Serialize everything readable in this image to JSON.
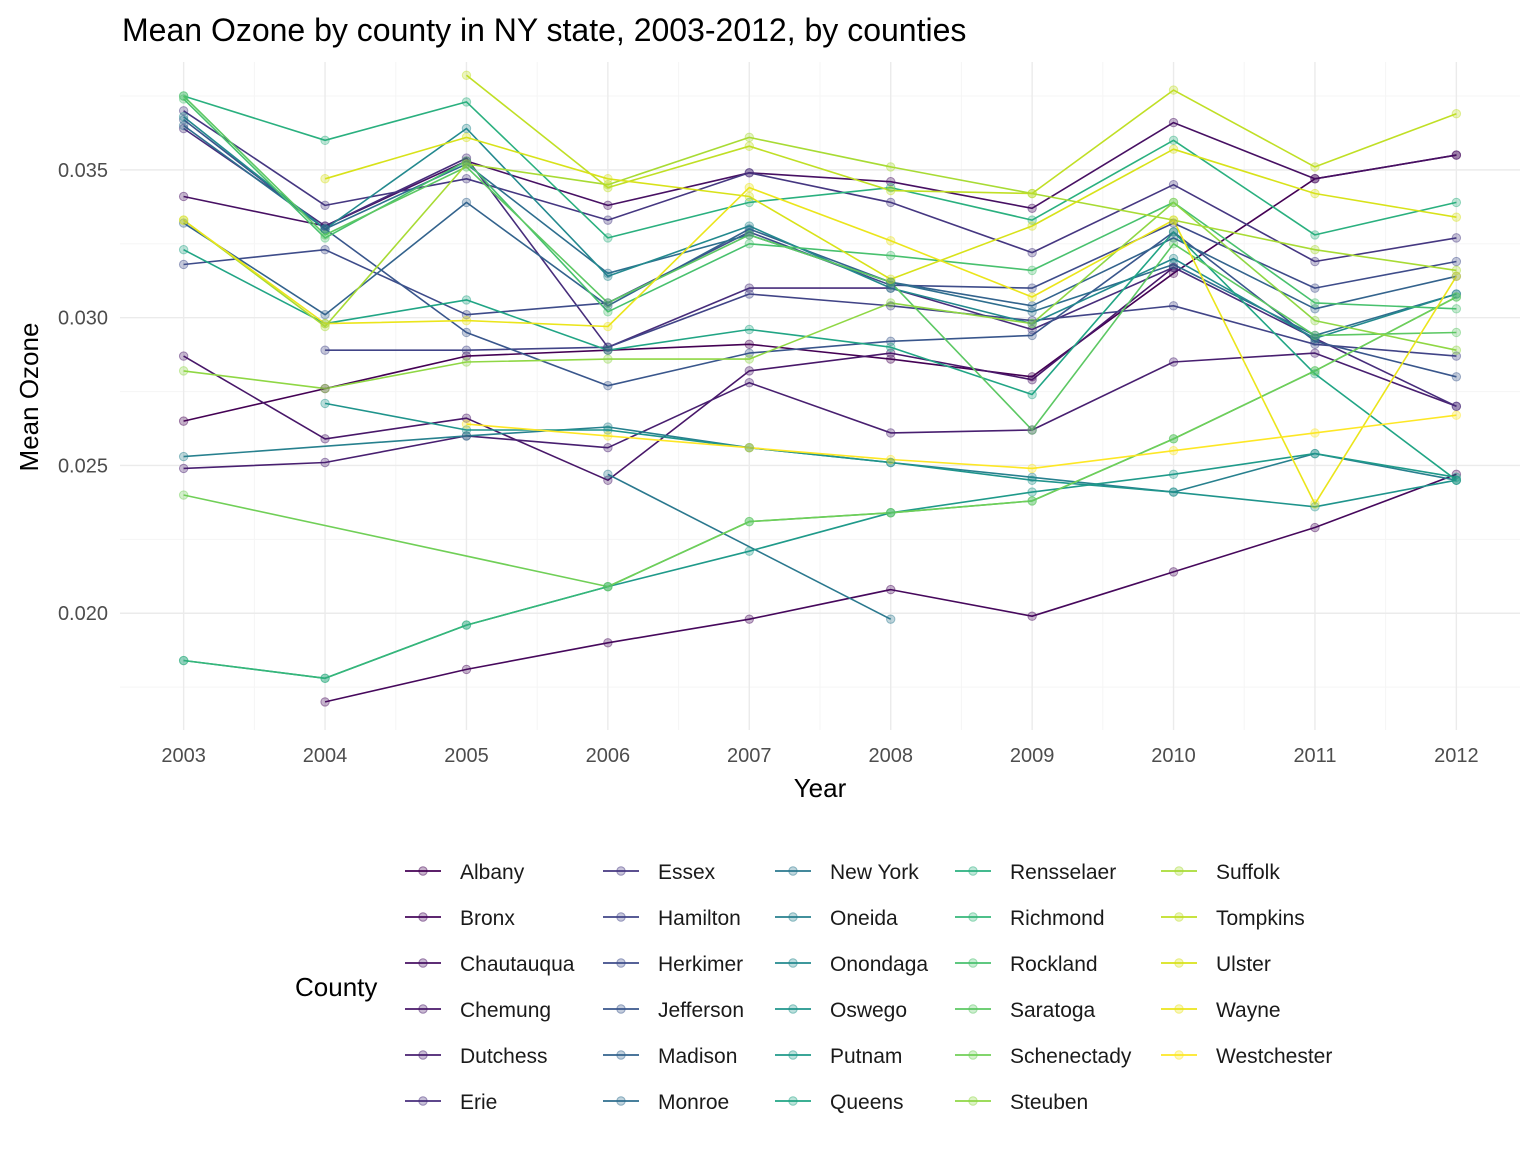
{
  "chart_data": {
    "type": "line",
    "title": "Mean Ozone by county in NY state, 2003-2012, by counties",
    "xlabel": "Year",
    "ylabel": "Mean Ozone",
    "xlim": [
      2002.55,
      2012.45
    ],
    "ylim": [
      0.01605,
      0.03865
    ],
    "x_ticks": [
      2003,
      2004,
      2005,
      2006,
      2007,
      2008,
      2009,
      2010,
      2011,
      2012
    ],
    "y_ticks": [
      0.02,
      0.025,
      0.03,
      0.035
    ],
    "y_tick_labels": [
      "0.020",
      "0.025",
      "0.030",
      "0.035"
    ],
    "grid": true,
    "legend_title": "County",
    "legend_position": "bottom",
    "series": [
      {
        "name": "Albany",
        "color": "#440154",
        "x": [
          2003,
          2004,
          2005,
          2006,
          2007,
          2008,
          2009,
          2010,
          2011,
          2012
        ],
        "y": [
          0.0265,
          0.0276,
          0.0287,
          0.0289,
          0.0291,
          0.0286,
          0.028,
          0.0315,
          0.0347,
          0.0355
        ]
      },
      {
        "name": "Bronx",
        "color": "#46085C",
        "x": [
          2004,
          2005,
          2006,
          2007,
          2008,
          2009,
          2010,
          2011,
          2012
        ],
        "y": [
          0.017,
          0.0181,
          0.019,
          0.0198,
          0.0208,
          0.0199,
          0.0214,
          0.0229,
          0.0247
        ]
      },
      {
        "name": "Chautauqua",
        "color": "#471063",
        "x": [
          2003,
          2004,
          2005,
          2006,
          2007,
          2008,
          2009,
          2010,
          2011,
          2012
        ],
        "y": [
          0.0341,
          0.0331,
          0.0353,
          0.0338,
          0.0349,
          0.0346,
          0.0337,
          0.0366,
          0.0347,
          0.0355
        ]
      },
      {
        "name": "Chemung",
        "color": "#481769",
        "x": [
          2003,
          2004,
          2005,
          2006,
          2007,
          2008,
          2009,
          2010
        ],
        "y": [
          0.0287,
          0.0259,
          0.0266,
          0.0245,
          0.0282,
          0.0288,
          0.0279,
          0.0317
        ]
      },
      {
        "name": "Dutchess",
        "color": "#481F70",
        "x": [
          2003,
          2004,
          2005,
          2006,
          2007,
          2008,
          2009,
          2010,
          2011,
          2012
        ],
        "y": [
          0.0249,
          0.0251,
          0.026,
          0.0256,
          0.0278,
          0.0261,
          0.0262,
          0.0285,
          0.0288,
          0.027
        ]
      },
      {
        "name": "Erie",
        "color": "#472D7B",
        "x": [
          2003,
          2004,
          2005,
          2006,
          2007,
          2008,
          2009,
          2010,
          2011,
          2012
        ],
        "y": [
          0.0364,
          0.0331,
          0.0354,
          0.029,
          0.031,
          0.031,
          0.0296,
          0.0317,
          0.0293,
          0.027
        ]
      },
      {
        "name": "Essex",
        "color": "#453781",
        "x": [
          2003,
          2004,
          2005,
          2006,
          2007,
          2008,
          2009,
          2010,
          2011,
          2012
        ],
        "y": [
          0.037,
          0.0338,
          0.0347,
          0.0333,
          0.0349,
          0.0339,
          0.0322,
          0.0345,
          0.0319,
          0.0327
        ]
      },
      {
        "name": "Hamilton",
        "color": "#414487",
        "x": [
          2004,
          2005,
          2006,
          2007,
          2008,
          2009,
          2010,
          2011,
          2012
        ],
        "y": [
          0.0289,
          0.0289,
          0.029,
          0.0308,
          0.0304,
          0.0299,
          0.0304,
          0.0291,
          0.0287
        ]
      },
      {
        "name": "Herkimer",
        "color": "#3E4C8A",
        "x": [
          2003,
          2004,
          2005,
          2006,
          2007,
          2008,
          2009,
          2010,
          2011,
          2012
        ],
        "y": [
          0.0318,
          0.0323,
          0.0301,
          0.0305,
          0.0329,
          0.0311,
          0.031,
          0.0332,
          0.031,
          0.0319
        ]
      },
      {
        "name": "Jefferson",
        "color": "#39568C",
        "x": [
          2003,
          2004,
          2005,
          2006,
          2007,
          2008,
          2009,
          2010,
          2011,
          2012
        ],
        "y": [
          0.0367,
          0.033,
          0.0295,
          0.0277,
          0.0288,
          0.0292,
          0.0294,
          0.0329,
          0.0292,
          0.028
        ]
      },
      {
        "name": "Madison",
        "color": "#33638D",
        "x": [
          2003,
          2004,
          2005,
          2006,
          2007,
          2008,
          2009,
          2010,
          2011,
          2012
        ],
        "y": [
          0.0332,
          0.0301,
          0.0339,
          0.0304,
          0.033,
          0.0312,
          0.0304,
          0.0327,
          0.0303,
          0.0314
        ]
      },
      {
        "name": "Monroe",
        "color": "#2E6E8E",
        "x": [
          2003,
          2004,
          2005,
          2006,
          2007,
          2008,
          2009,
          2010,
          2011,
          2012
        ],
        "y": [
          0.0365,
          0.033,
          0.0352,
          0.0315,
          0.0328,
          0.0312,
          0.0302,
          0.0318,
          0.0294,
          0.0308
        ]
      },
      {
        "name": "New York",
        "color": "#2A788E",
        "x": [
          2006,
          2008
        ],
        "y": [
          0.0247,
          0.0198
        ]
      },
      {
        "name": "Oneida",
        "color": "#27808E",
        "x": [
          2003,
          2005,
          2006,
          2007,
          2008,
          2009,
          2010,
          2011,
          2012
        ],
        "y": [
          0.0253,
          0.026,
          0.0263,
          0.0256,
          0.0251,
          0.0246,
          0.0241,
          0.0254,
          0.0245
        ]
      },
      {
        "name": "Onondaga",
        "color": "#23898E",
        "x": [
          2003,
          2004,
          2005,
          2006,
          2007,
          2008,
          2009,
          2010,
          2011,
          2012
        ],
        "y": [
          0.0368,
          0.033,
          0.0364,
          0.0314,
          0.0331,
          0.031,
          0.0298,
          0.032,
          0.0293,
          0.0308
        ]
      },
      {
        "name": "Oswego",
        "color": "#1F948C",
        "x": [
          2004,
          2005,
          2006,
          2007,
          2008,
          2009,
          2010,
          2011,
          2012
        ],
        "y": [
          0.0271,
          0.0262,
          0.0262,
          0.0256,
          0.0251,
          0.0245,
          0.0241,
          0.0236,
          0.0245
        ]
      },
      {
        "name": "Putnam",
        "color": "#1F9A8A",
        "x": [
          2003,
          2004,
          2005,
          2006,
          2007,
          2008,
          2009,
          2010,
          2011,
          2012
        ],
        "y": [
          0.0184,
          0.0178,
          0.0196,
          0.0209,
          0.0221,
          0.0234,
          0.0241,
          0.0247,
          0.0254,
          0.0246
        ]
      },
      {
        "name": "Queens",
        "color": "#21A585",
        "x": [
          2003,
          2004,
          2005,
          2006,
          2007,
          2008,
          2009,
          2010,
          2011,
          2012
        ],
        "y": [
          0.0323,
          0.0298,
          0.0306,
          0.0289,
          0.0296,
          0.029,
          0.0274,
          0.0329,
          0.0281,
          0.0245
        ]
      },
      {
        "name": "Rensselaer",
        "color": "#2AB07F",
        "x": [
          2003,
          2004,
          2005,
          2006,
          2007,
          2008,
          2009,
          2010,
          2011,
          2012
        ],
        "y": [
          0.0375,
          0.036,
          0.0373,
          0.0327,
          0.0339,
          0.0344,
          0.0333,
          0.036,
          0.0328,
          0.0339
        ]
      },
      {
        "name": "Richmond",
        "color": "#35B779",
        "x": [
          2003,
          2004,
          2005,
          2006,
          2007,
          2008,
          2009,
          2010,
          2011,
          2012
        ],
        "y": [
          0.0184,
          0.0178,
          0.0196,
          0.0209,
          0.0231,
          0.0234,
          0.0238,
          0.0259,
          0.0282,
          0.0307
        ]
      },
      {
        "name": "Rockland",
        "color": "#48C16E",
        "x": [
          2003,
          2004,
          2005,
          2006,
          2007,
          2008,
          2009,
          2010,
          2011,
          2012
        ],
        "y": [
          0.0374,
          0.0327,
          0.0353,
          0.0302,
          0.0325,
          0.0321,
          0.0316,
          0.0339,
          0.0305,
          0.0303
        ]
      },
      {
        "name": "Saratoga",
        "color": "#5CC863",
        "x": [
          2003,
          2004,
          2005,
          2006,
          2007,
          2008,
          2009,
          2010,
          2011,
          2012
        ],
        "y": [
          0.0375,
          0.0328,
          0.0351,
          0.0305,
          0.0328,
          0.0312,
          0.0262,
          0.0325,
          0.0294,
          0.0295
        ]
      },
      {
        "name": "Schenectady",
        "color": "#70CF57",
        "x": [
          2003,
          2006,
          2007,
          2008,
          2009,
          2010,
          2011,
          2012
        ],
        "y": [
          0.024,
          0.0209,
          0.0231,
          0.0234,
          0.0238,
          0.0259,
          0.0282,
          0.0307
        ]
      },
      {
        "name": "Steuben",
        "color": "#8FD744",
        "x": [
          2003,
          2004,
          2005,
          2006,
          2007,
          2008,
          2009,
          2010,
          2011,
          2012
        ],
        "y": [
          0.0282,
          0.0276,
          0.0285,
          0.0286,
          0.0286,
          0.0305,
          0.0298,
          0.0339,
          0.0299,
          0.0289
        ]
      },
      {
        "name": "Suffolk",
        "color": "#A8DB34",
        "x": [
          2003,
          2004,
          2005,
          2006,
          2007,
          2008,
          2009,
          2010,
          2011,
          2012
        ],
        "y": [
          0.0333,
          0.0297,
          0.0352,
          0.0345,
          0.0361,
          0.0351,
          0.0342,
          0.0333,
          0.0323,
          0.0316
        ]
      },
      {
        "name": "Tompkins",
        "color": "#C0DF25",
        "x": [
          2005,
          2006,
          2007,
          2008,
          2009,
          2010,
          2011,
          2012
        ],
        "y": [
          0.0382,
          0.0344,
          0.0358,
          0.0343,
          0.0342,
          0.0377,
          0.0351,
          0.0369
        ]
      },
      {
        "name": "Ulster",
        "color": "#D8E219",
        "x": [
          2004,
          2005,
          2006,
          2007,
          2008,
          2009,
          2010,
          2011,
          2012
        ],
        "y": [
          0.0347,
          0.0361,
          0.0347,
          0.0341,
          0.0313,
          0.0331,
          0.0357,
          0.0342,
          0.0334
        ]
      },
      {
        "name": "Wayne",
        "color": "#EBE51B",
        "x": [
          2003,
          2004,
          2005,
          2006,
          2007,
          2008,
          2009,
          2010,
          2011,
          2012
        ],
        "y": [
          0.0333,
          0.0298,
          0.0299,
          0.0297,
          0.0344,
          0.0326,
          0.0307,
          0.0333,
          0.0237,
          0.0314
        ]
      },
      {
        "name": "Westchester",
        "color": "#FDE725",
        "x": [
          2005,
          2006,
          2007,
          2008,
          2009,
          2010,
          2011,
          2012
        ],
        "y": [
          0.0264,
          0.026,
          0.0256,
          0.0252,
          0.0249,
          0.0255,
          0.0261,
          0.0267
        ]
      }
    ]
  }
}
